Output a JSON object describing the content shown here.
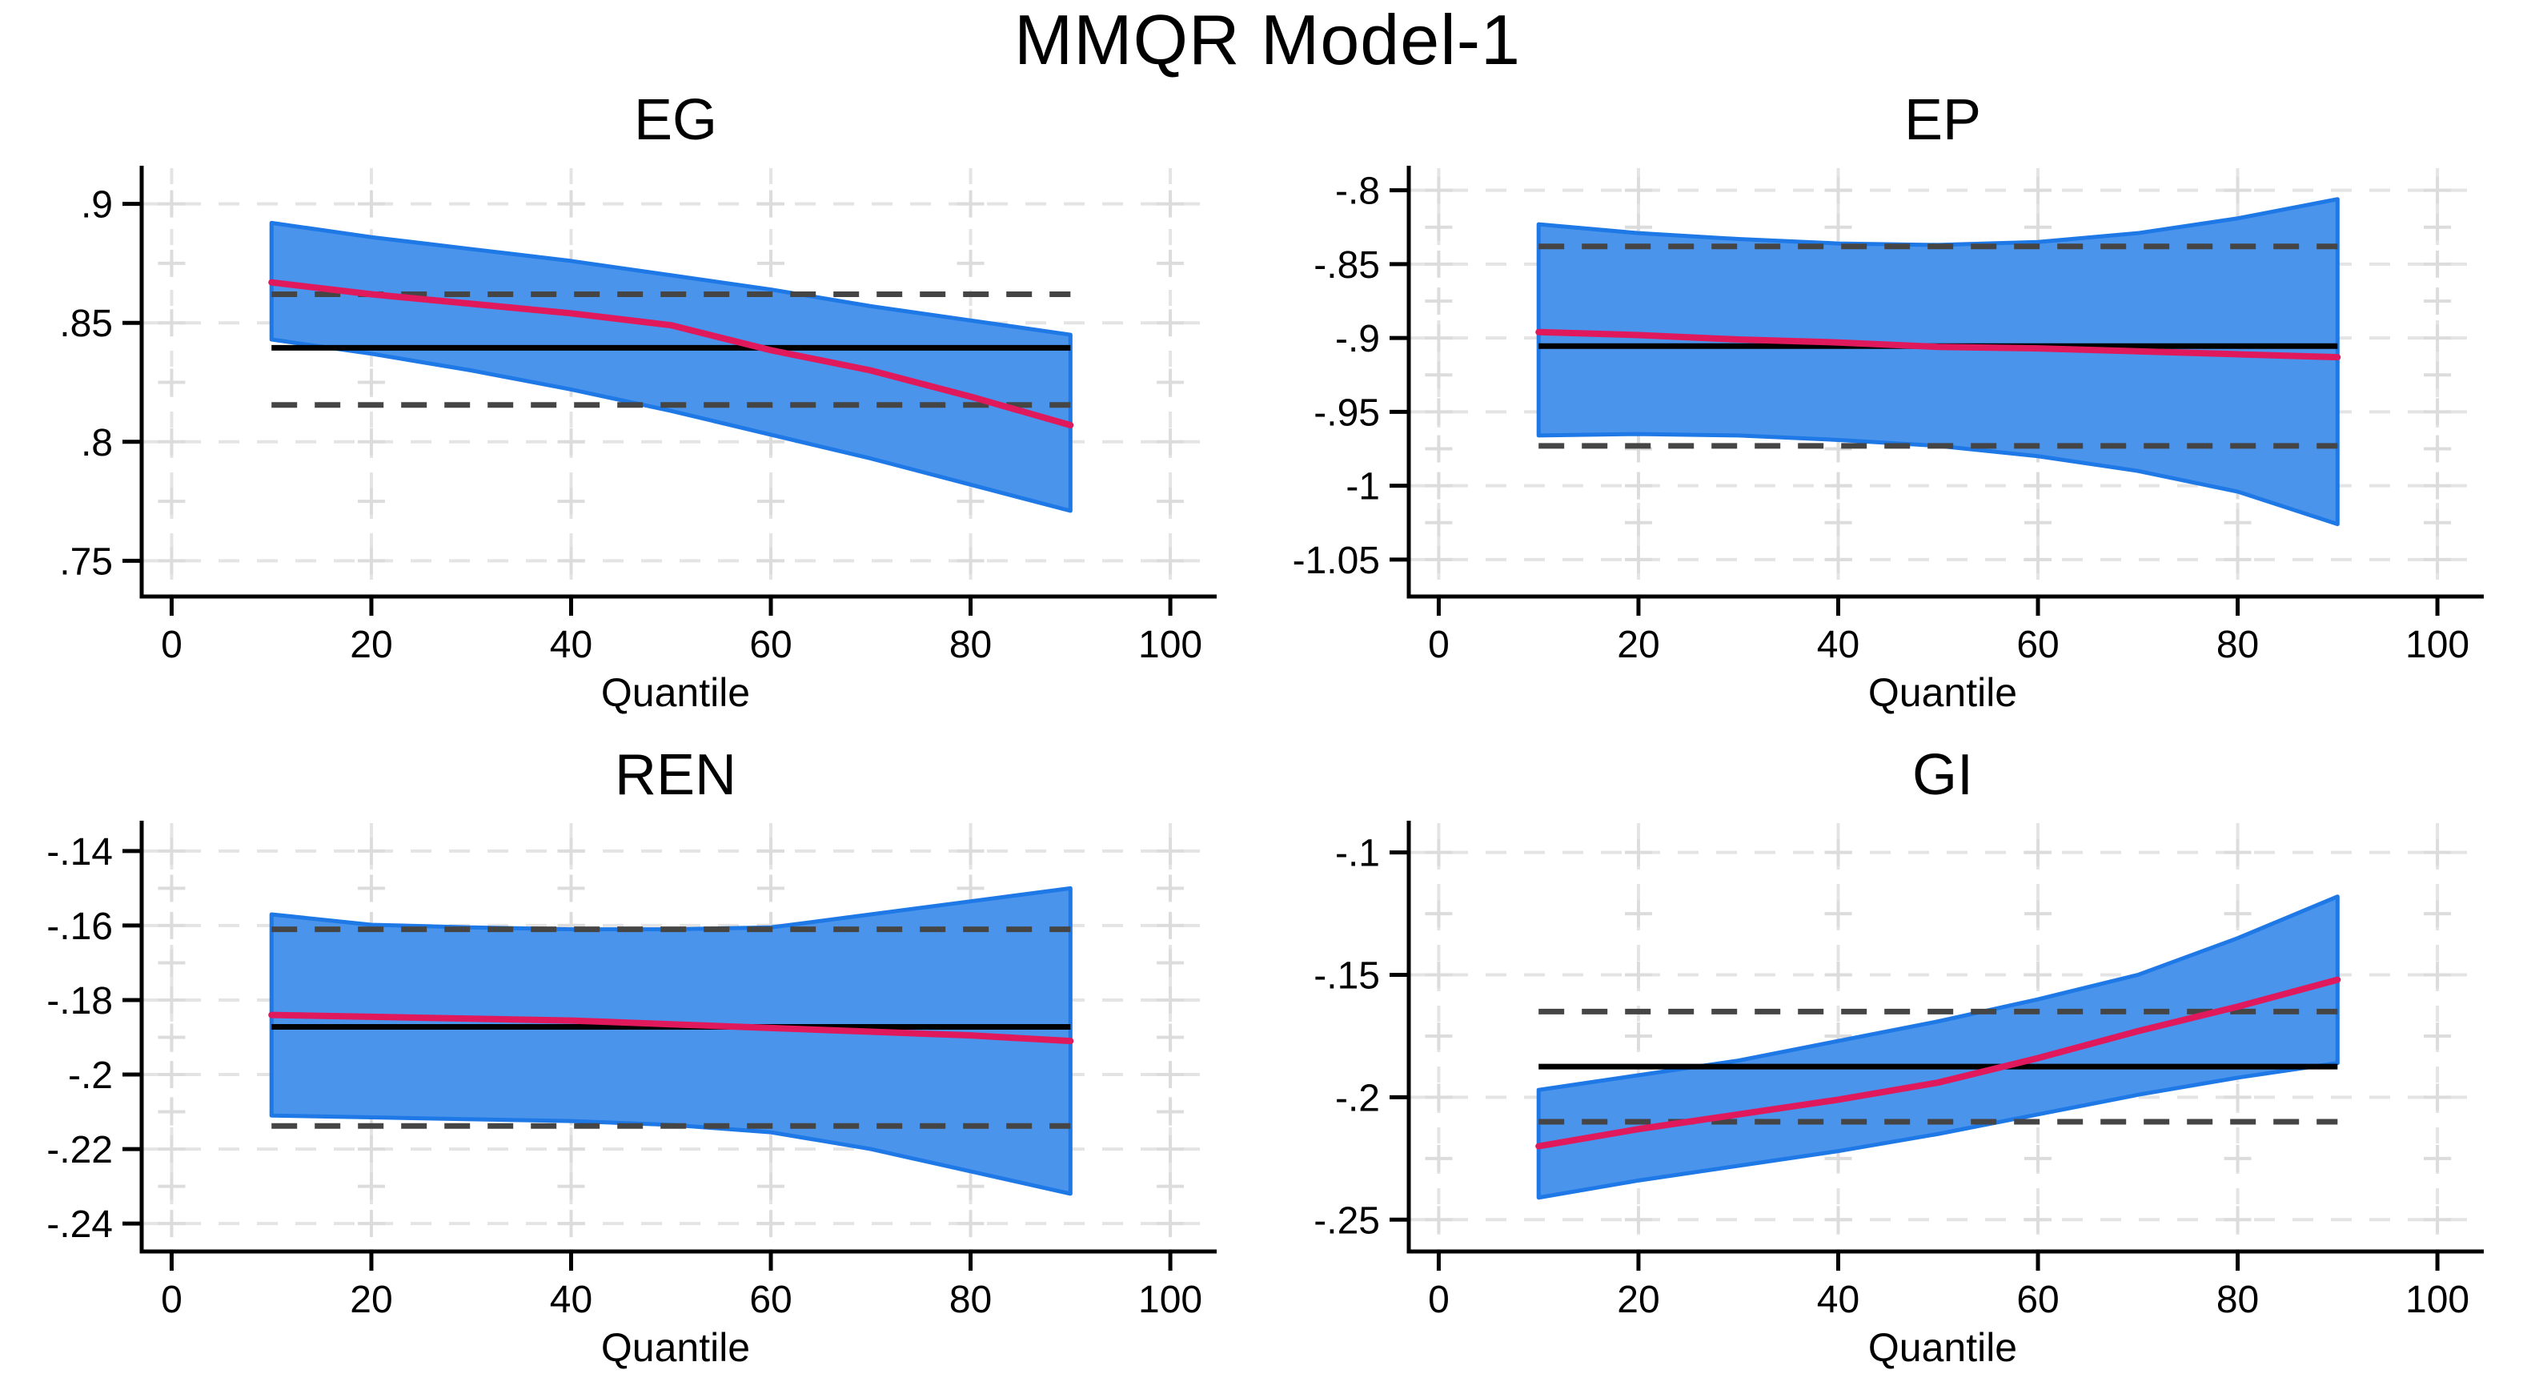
{
  "title": "MMQR Model-1",
  "colors": {
    "band_fill": "#4a94eb",
    "band_edge": "#1e78e6",
    "quantile_line": "#e0195c",
    "ols_line": "#000000",
    "ols_ci_dash": "#454545",
    "grid": "#e4e4e4",
    "grid_cross": "#dcdcdc",
    "axis": "#000000",
    "text": "#000000"
  },
  "chart_data": [
    {
      "type": "area",
      "title": "EG",
      "xlabel": "Quantile",
      "ylabel": "",
      "x": [
        10,
        20,
        30,
        40,
        50,
        60,
        70,
        80,
        90
      ],
      "series": [
        {
          "name": "mmqr-quantile-estimate",
          "values": [
            0.867,
            0.862,
            0.858,
            0.854,
            0.849,
            0.8385,
            0.83,
            0.819,
            0.807
          ]
        },
        {
          "name": "ci-band-upper",
          "values": [
            0.892,
            0.886,
            0.881,
            0.876,
            0.87,
            0.864,
            0.857,
            0.851,
            0.845
          ]
        },
        {
          "name": "ci-band-lower",
          "values": [
            0.843,
            0.837,
            0.83,
            0.822,
            0.813,
            0.803,
            0.793,
            0.782,
            0.771
          ]
        }
      ],
      "ols_estimate": 0.8395,
      "ols_ci_upper": 0.862,
      "ols_ci_lower": 0.8155,
      "xlim": [
        -3,
        104
      ],
      "ylim": [
        0.735,
        0.915
      ],
      "xticks": [
        0,
        20,
        40,
        60,
        80,
        100
      ],
      "xtick_labels": [
        "0",
        "20",
        "40",
        "60",
        "80",
        "100"
      ],
      "yticks": [
        0.75,
        0.8,
        0.85,
        0.9
      ],
      "ytick_labels": [
        ".75",
        ".8",
        ".85",
        ".9"
      ]
    },
    {
      "type": "area",
      "title": "EP",
      "xlabel": "Quantile",
      "ylabel": "",
      "x": [
        10,
        20,
        30,
        40,
        50,
        60,
        70,
        80,
        90
      ],
      "series": [
        {
          "name": "mmqr-quantile-estimate",
          "values": [
            -0.896,
            -0.898,
            -0.901,
            -0.903,
            -0.906,
            -0.907,
            -0.909,
            -0.911,
            -0.913
          ]
        },
        {
          "name": "ci-band-upper",
          "values": [
            -0.823,
            -0.829,
            -0.833,
            -0.836,
            -0.837,
            -0.835,
            -0.829,
            -0.819,
            -0.806
          ]
        },
        {
          "name": "ci-band-lower",
          "values": [
            -0.966,
            -0.965,
            -0.966,
            -0.969,
            -0.973,
            -0.98,
            -0.99,
            -1.004,
            -1.026
          ]
        }
      ],
      "ols_estimate": -0.9055,
      "ols_ci_upper": -0.838,
      "ols_ci_lower": -0.973,
      "xlim": [
        -3,
        104
      ],
      "ylim": [
        -1.075,
        -0.785
      ],
      "xticks": [
        0,
        20,
        40,
        60,
        80,
        100
      ],
      "xtick_labels": [
        "0",
        "20",
        "40",
        "60",
        "80",
        "100"
      ],
      "yticks": [
        -1.05,
        -1,
        -0.95,
        -0.9,
        -0.85,
        -0.8
      ],
      "ytick_labels": [
        "-1.05",
        "-1",
        "-.95",
        "-.9",
        "-.85",
        "-.8"
      ]
    },
    {
      "type": "area",
      "title": "REN",
      "xlabel": "Quantile",
      "ylabel": "",
      "x": [
        10,
        20,
        30,
        40,
        50,
        60,
        70,
        80,
        90
      ],
      "series": [
        {
          "name": "mmqr-quantile-estimate",
          "values": [
            -0.184,
            -0.1845,
            -0.185,
            -0.1855,
            -0.1865,
            -0.1875,
            -0.1885,
            -0.1895,
            -0.191
          ]
        },
        {
          "name": "ci-band-upper",
          "values": [
            -0.157,
            -0.1598,
            -0.1605,
            -0.161,
            -0.161,
            -0.1605,
            -0.157,
            -0.1535,
            -0.15
          ]
        },
        {
          "name": "ci-band-lower",
          "values": [
            -0.211,
            -0.2115,
            -0.212,
            -0.2125,
            -0.2135,
            -0.2155,
            -0.22,
            -0.226,
            -0.232
          ]
        }
      ],
      "ols_estimate": -0.1872,
      "ols_ci_upper": -0.161,
      "ols_ci_lower": -0.2138,
      "xlim": [
        -3,
        104
      ],
      "ylim": [
        -0.2475,
        -0.1325
      ],
      "xticks": [
        0,
        20,
        40,
        60,
        80,
        100
      ],
      "xtick_labels": [
        "0",
        "20",
        "40",
        "60",
        "80",
        "100"
      ],
      "yticks": [
        -0.24,
        -0.22,
        -0.2,
        -0.18,
        -0.16,
        -0.14
      ],
      "ytick_labels": [
        "-.24",
        "-.22",
        "-.2",
        "-.18",
        "-.16",
        "-.14"
      ]
    },
    {
      "type": "area",
      "title": "GI",
      "xlabel": "Quantile",
      "ylabel": "",
      "x": [
        10,
        20,
        30,
        40,
        50,
        60,
        70,
        80,
        90
      ],
      "series": [
        {
          "name": "mmqr-quantile-estimate",
          "values": [
            -0.22,
            -0.213,
            -0.207,
            -0.201,
            -0.194,
            -0.184,
            -0.173,
            -0.163,
            -0.152
          ]
        },
        {
          "name": "ci-band-upper",
          "values": [
            -0.197,
            -0.191,
            -0.185,
            -0.177,
            -0.169,
            -0.16,
            -0.15,
            -0.135,
            -0.118
          ]
        },
        {
          "name": "ci-band-lower",
          "values": [
            -0.241,
            -0.234,
            -0.228,
            -0.222,
            -0.215,
            -0.207,
            -0.199,
            -0.192,
            -0.186
          ]
        }
      ],
      "ols_estimate": -0.1875,
      "ols_ci_upper": -0.165,
      "ols_ci_lower": -0.21,
      "xlim": [
        -3,
        104
      ],
      "ylim": [
        -0.263,
        -0.088
      ],
      "xticks": [
        0,
        20,
        40,
        60,
        80,
        100
      ],
      "xtick_labels": [
        "0",
        "20",
        "40",
        "60",
        "80",
        "100"
      ],
      "yticks": [
        -0.25,
        -0.2,
        -0.15,
        -0.1
      ],
      "ytick_labels": [
        "-.25",
        "-.2",
        "-.15",
        "-.1"
      ]
    }
  ]
}
